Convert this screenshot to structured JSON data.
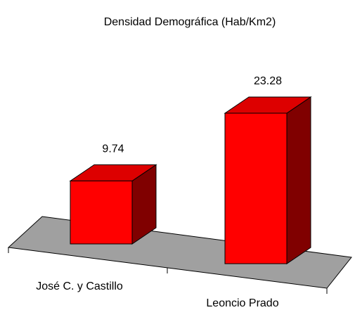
{
  "chart_data": {
    "type": "bar3d",
    "title": "Densidad Demográfica (Hab/Km2)",
    "categories": [
      "José C. y Castillo",
      "Leoncio Prado"
    ],
    "values": [
      9.74,
      23.28
    ],
    "color": "#ff0000"
  }
}
